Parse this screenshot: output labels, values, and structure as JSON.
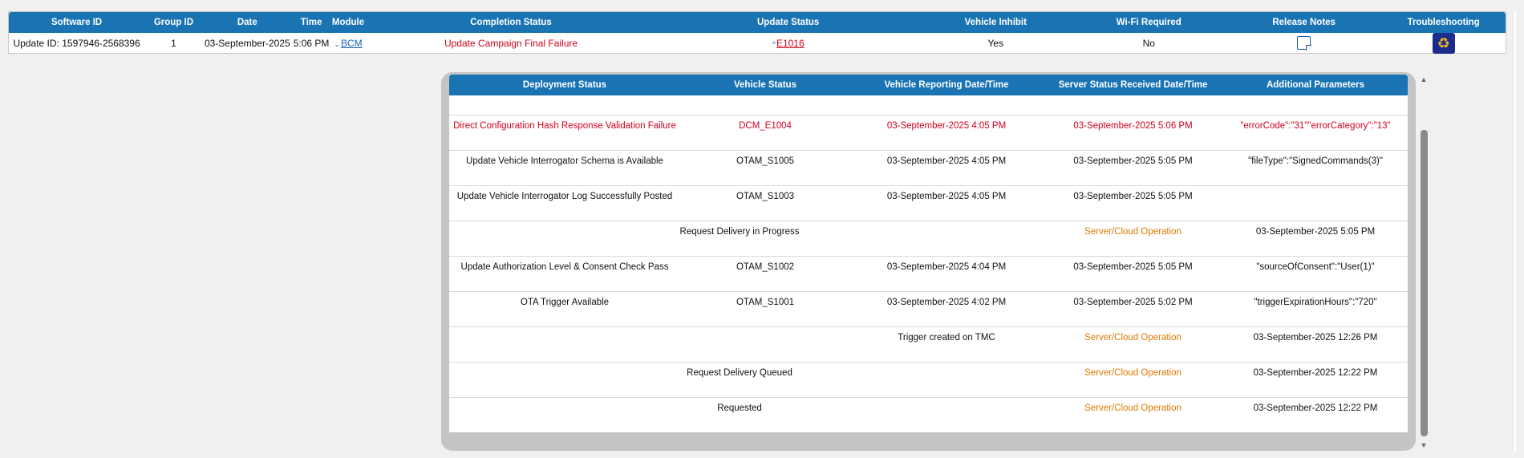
{
  "main": {
    "headers": {
      "software_id": "Software ID",
      "group_id": "Group ID",
      "date": "Date",
      "time": "Time",
      "module": "Module",
      "completion_status": "Completion Status",
      "update_status": "Update Status",
      "vehicle_inhibit": "Vehicle Inhibit",
      "wifi_required": "Wi-Fi Required",
      "release_notes": "Release Notes",
      "troubleshooting": "Troubleshooting"
    },
    "row": {
      "software_id": "Update ID: 1597946-2568396",
      "group_id": "1",
      "date": "03-September-2025",
      "time": "5:06 PM",
      "module_caret": "⌄",
      "module": "BCM",
      "completion_status": "Update Campaign Final Failure",
      "update_status_caret": "^",
      "update_status": "E1016",
      "vehicle_inhibit": "Yes",
      "wifi_required": "No",
      "release_notes_icon": "note-icon",
      "troubleshooting_icon": "recycle-icon"
    }
  },
  "detail": {
    "headers": {
      "deployment_status": "Deployment Status",
      "vehicle_status": "Vehicle Status",
      "vehicle_reporting": "Vehicle Reporting Date/Time",
      "server_status": "Server Status Received Date/Time",
      "additional_parameters": "Additional Parameters"
    },
    "rows": [
      {
        "deployment_status": "Direct Configuration Hash Response Validation Failure",
        "vehicle_status": "DCM_E1004",
        "vehicle_reporting": "03-September-2025 4:05 PM",
        "server_status": "03-September-2025 5:06 PM",
        "additional_parameters": "\"errorCode\":\"31\"\"errorCategory\":\"13\""
      },
      {
        "deployment_status": "Update Vehicle Interrogator Schema is Available",
        "vehicle_status": "OTAM_S1005",
        "vehicle_reporting": "03-September-2025 4:05 PM",
        "server_status": "03-September-2025 5:05 PM",
        "additional_parameters": "\"fileType\":\"SignedCommands(3)\""
      },
      {
        "deployment_status": "Update Vehicle Interrogator Log Successfully Posted",
        "vehicle_status": "OTAM_S1003",
        "vehicle_reporting": "03-September-2025 4:05 PM",
        "server_status": "03-September-2025 5:05 PM",
        "additional_parameters": ""
      },
      {
        "description": "Request Delivery in Progress",
        "category": "Server/Cloud Operation",
        "date": "03-September-2025 5:05 PM"
      },
      {
        "deployment_status": "Update Authorization Level & Consent Check Pass",
        "vehicle_status": "OTAM_S1002",
        "vehicle_reporting": "03-September-2025 4:04 PM",
        "server_status": "03-September-2025 5:05 PM",
        "additional_parameters": "\"sourceOfConsent\":\"User(1)\""
      },
      {
        "deployment_status": "OTA Trigger Available",
        "vehicle_status": "OTAM_S1001",
        "vehicle_reporting": "03-September-2025 4:02 PM",
        "server_status": "03-September-2025 5:02 PM",
        "additional_parameters": "\"triggerExpirationHours\":\"720\""
      },
      {
        "description": "Trigger created on TMC",
        "category": "Server/Cloud Operation",
        "date": "03-September-2025 12:26 PM"
      },
      {
        "description": "Request Delivery Queued",
        "category": "Server/Cloud Operation",
        "date": "03-September-2025 12:22 PM"
      },
      {
        "description": "Requested",
        "category": "Server/Cloud Operation",
        "date": "03-September-2025 12:22 PM"
      }
    ]
  },
  "scrollbar": {
    "up_arrow": "▲",
    "down_arrow": "▼"
  },
  "colors": {
    "header_blue": "#1a74b4",
    "error_red": "#d0001b",
    "server_orange": "#e07a00"
  }
}
